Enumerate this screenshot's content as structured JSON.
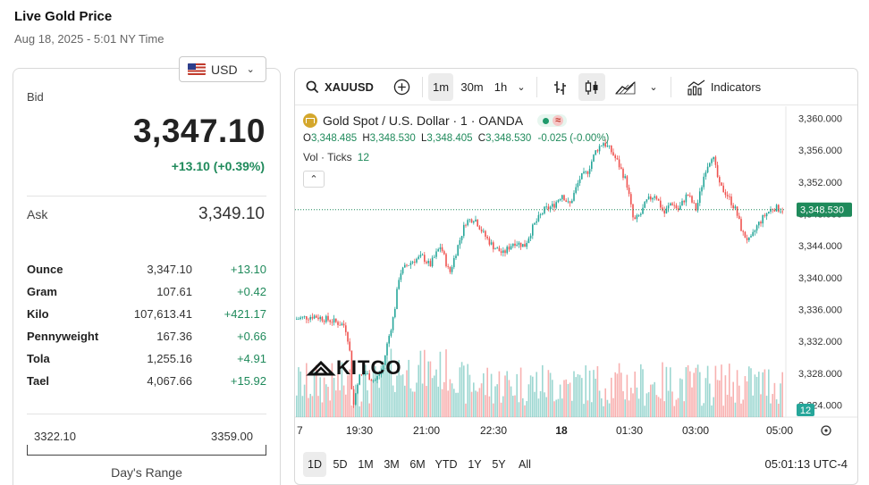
{
  "header": {
    "title": "Live Gold Price",
    "datetime": "Aug 18, 2025 - 5:01 NY Time"
  },
  "currency": {
    "selected": "USD"
  },
  "quote": {
    "bid_label": "Bid",
    "bid": "3,347.10",
    "change": "+13.10 (+0.39%)",
    "ask_label": "Ask",
    "ask": "3,349.10"
  },
  "units": [
    {
      "name": "Ounce",
      "price": "3,347.10",
      "change": "+13.10"
    },
    {
      "name": "Gram",
      "price": "107.61",
      "change": "+0.42"
    },
    {
      "name": "Kilo",
      "price": "107,613.41",
      "change": "+421.17"
    },
    {
      "name": "Pennyweight",
      "price": "167.36",
      "change": "+0.66"
    },
    {
      "name": "Tola",
      "price": "1,255.16",
      "change": "+4.91"
    },
    {
      "name": "Tael",
      "price": "4,067.66",
      "change": "+15.92"
    }
  ],
  "days_range": {
    "low": "3322.10",
    "high": "3359.00",
    "label": "Day's Range"
  },
  "toolbar": {
    "symbol": "XAUUSD",
    "intervals": [
      "1m",
      "30m",
      "1h"
    ],
    "active_interval": "1m",
    "indicators_label": "Indicators"
  },
  "legend": {
    "title": "Gold Spot / U.S. Dollar · 1 · OANDA",
    "o_label": "O",
    "o": "3,348.485",
    "h_label": "H",
    "h": "3,348.530",
    "l_label": "L",
    "l": "3,348.405",
    "c_label": "C",
    "c": "3,348.530",
    "change": "-0.025 (-0.00%)",
    "vol_label": "Vol · Ticks",
    "vol_value": "12"
  },
  "watermark": "KITCO",
  "chart_data": {
    "type": "candlestick",
    "title": "Gold Spot / U.S. Dollar · 1 · OANDA",
    "y_ticks": [
      "3,360.000",
      "3,356.000",
      "3,352.000",
      "3,348.000",
      "3,344.000",
      "3,340.000",
      "3,336.000",
      "3,332.000",
      "3,328.000",
      "3,324.000"
    ],
    "ylim": [
      3322.5,
      3361.5
    ],
    "x_ticks": [
      "7",
      "19:30",
      "21:00",
      "22:30",
      "18",
      "01:30",
      "03:00",
      "05:00"
    ],
    "last_price": "3,348.530",
    "last_price_value": 3348.53,
    "last_volume": "12",
    "path_keypoints": [
      [
        0,
        3334.8
      ],
      [
        20,
        3335.2
      ],
      [
        40,
        3334.6
      ],
      [
        55,
        3334.0
      ],
      [
        60,
        3331.5
      ],
      [
        64,
        3323.5
      ],
      [
        70,
        3327.5
      ],
      [
        78,
        3328.0
      ],
      [
        88,
        3327.0
      ],
      [
        97,
        3328.5
      ],
      [
        102,
        3331.5
      ],
      [
        110,
        3335.5
      ],
      [
        116,
        3340.5
      ],
      [
        124,
        3341.5
      ],
      [
        132,
        3342.2
      ],
      [
        142,
        3342.6
      ],
      [
        150,
        3341.5
      ],
      [
        162,
        3344.0
      ],
      [
        172,
        3340.5
      ],
      [
        180,
        3343.5
      ],
      [
        190,
        3347.0
      ],
      [
        200,
        3347.5
      ],
      [
        210,
        3345.5
      ],
      [
        220,
        3344.0
      ],
      [
        232,
        3343.0
      ],
      [
        244,
        3344.5
      ],
      [
        256,
        3344.0
      ],
      [
        266,
        3346.5
      ],
      [
        278,
        3348.5
      ],
      [
        288,
        3349.0
      ],
      [
        298,
        3350.5
      ],
      [
        306,
        3349.0
      ],
      [
        318,
        3352.5
      ],
      [
        326,
        3353.2
      ],
      [
        336,
        3356.0
      ],
      [
        344,
        3357.0
      ],
      [
        352,
        3356.0
      ],
      [
        360,
        3354.5
      ],
      [
        370,
        3352.0
      ],
      [
        378,
        3347.0
      ],
      [
        386,
        3348.0
      ],
      [
        392,
        3349.5
      ],
      [
        402,
        3350.5
      ],
      [
        412,
        3348.0
      ],
      [
        420,
        3349.5
      ],
      [
        428,
        3348.5
      ],
      [
        438,
        3350.5
      ],
      [
        448,
        3348.5
      ],
      [
        458,
        3353.5
      ],
      [
        466,
        3355.5
      ],
      [
        474,
        3351.5
      ],
      [
        482,
        3350.5
      ],
      [
        492,
        3348.5
      ],
      [
        500,
        3345.5
      ],
      [
        508,
        3344.5
      ],
      [
        516,
        3346.5
      ],
      [
        526,
        3348.0
      ],
      [
        534,
        3348.8
      ],
      [
        546,
        3348.5
      ]
    ]
  },
  "bottom_bar": {
    "ranges": [
      "1D",
      "5D",
      "1M",
      "3M",
      "6M",
      "YTD",
      "1Y",
      "5Y",
      "All"
    ],
    "active_range": "1D",
    "clock": "05:01:13 UTC-4"
  }
}
